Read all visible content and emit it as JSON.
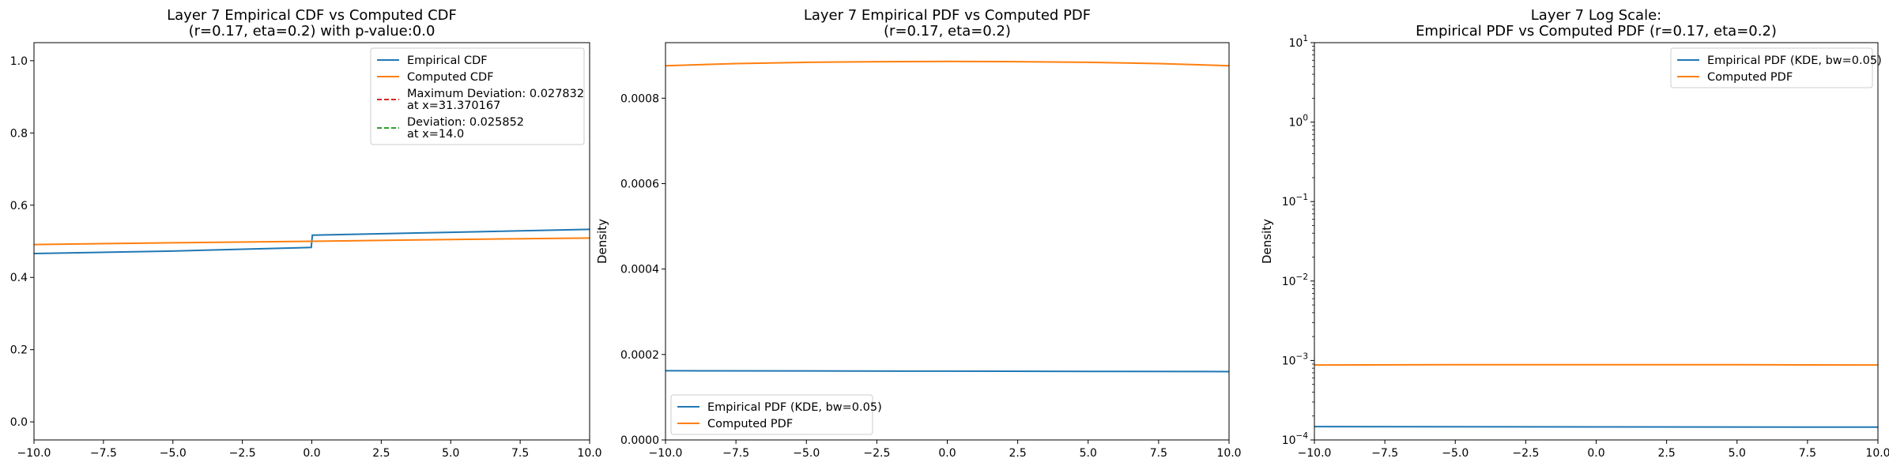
{
  "chart_data": [
    {
      "type": "line",
      "title": "Layer 7 Empirical CDF vs Computed CDF",
      "subtitle": "(r=0.17, eta=0.2) with p-value:0.0",
      "xlabel": "",
      "ylabel": "",
      "xlim": [
        -10,
        10
      ],
      "ylim": [
        -0.05,
        1.05
      ],
      "xticks": [
        -10.0,
        -7.5,
        -5.0,
        -2.5,
        0.0,
        2.5,
        5.0,
        7.5,
        10.0
      ],
      "xtick_labels": [
        "−10.0",
        "−7.5",
        "−5.0",
        "−2.5",
        "0.0",
        "2.5",
        "5.0",
        "7.5",
        "10.0"
      ],
      "yticks": [
        0.0,
        0.2,
        0.4,
        0.6,
        0.8,
        1.0
      ],
      "ytick_labels": [
        "0.0",
        "0.2",
        "0.4",
        "0.6",
        "0.8",
        "1.0"
      ],
      "grid": false,
      "legend_position": "top-right",
      "series": [
        {
          "name": "Empirical CDF",
          "color": "#1f77b4",
          "dash": "",
          "points": [
            [
              -10,
              0.466
            ],
            [
              -5,
              0.473
            ],
            [
              -0.02,
              0.483
            ],
            [
              0.02,
              0.517
            ],
            [
              5,
              0.525
            ],
            [
              10,
              0.533
            ]
          ]
        },
        {
          "name": "Computed CDF",
          "color": "#ff7f0e",
          "dash": "",
          "points": [
            [
              -10,
              0.491
            ],
            [
              -5,
              0.496
            ],
            [
              0,
              0.5
            ],
            [
              5,
              0.505
            ],
            [
              10,
              0.509
            ]
          ]
        },
        {
          "name": "Maximum Deviation: 0.027832",
          "name2": "at x=31.370167",
          "color": "#d62728",
          "dash": "6,3",
          "points": []
        },
        {
          "name": "Deviation: 0.025852",
          "name2": "at x=14.0",
          "color": "#2ca02c",
          "dash": "6,3",
          "points": []
        }
      ]
    },
    {
      "type": "line",
      "title": "Layer 7 Empirical PDF vs Computed PDF",
      "subtitle": "(r=0.17, eta=0.2)",
      "xlabel": "",
      "ylabel": "Density",
      "xlim": [
        -10,
        10
      ],
      "ylim": [
        0,
        0.00093
      ],
      "xticks": [
        -10.0,
        -7.5,
        -5.0,
        -2.5,
        0.0,
        2.5,
        5.0,
        7.5,
        10.0
      ],
      "xtick_labels": [
        "−10.0",
        "−7.5",
        "−5.0",
        "−2.5",
        "0.0",
        "2.5",
        "5.0",
        "7.5",
        "10.0"
      ],
      "yticks": [
        0.0,
        0.0002,
        0.0004,
        0.0006,
        0.0008
      ],
      "ytick_labels": [
        "0.0000",
        "0.0002",
        "0.0004",
        "0.0006",
        "0.0008"
      ],
      "grid": false,
      "legend_position": "bottom-left",
      "series": [
        {
          "name": "Empirical PDF (KDE, bw=0.05)",
          "color": "#1f77b4",
          "dash": "",
          "points": [
            [
              -10,
              0.000162
            ],
            [
              -5,
              0.0001615
            ],
            [
              0,
              0.000161
            ],
            [
              5,
              0.0001605
            ],
            [
              10,
              0.00016
            ]
          ]
        },
        {
          "name": "Computed PDF",
          "color": "#ff7f0e",
          "dash": "",
          "points": [
            [
              -10,
              0.000876
            ],
            [
              -7.5,
              0.000881
            ],
            [
              -5,
              0.000884
            ],
            [
              -2.5,
              0.0008855
            ],
            [
              0,
              0.000886
            ],
            [
              2.5,
              0.0008855
            ],
            [
              5,
              0.000884
            ],
            [
              7.5,
              0.000881
            ],
            [
              10,
              0.000876
            ]
          ]
        }
      ]
    },
    {
      "type": "line",
      "title": "Layer 7 Log Scale:",
      "subtitle": "Empirical PDF vs Computed PDF (r=0.17, eta=0.2)",
      "xlabel": "",
      "ylabel": "Density",
      "yscale": "log",
      "xlim": [
        -10,
        10
      ],
      "ylim": [
        0.0001,
        10
      ],
      "xticks": [
        -10.0,
        -7.5,
        -5.0,
        -2.5,
        0.0,
        2.5,
        5.0,
        7.5,
        10.0
      ],
      "xtick_labels": [
        "−10.0",
        "−7.5",
        "−5.0",
        "−2.5",
        "0.0",
        "2.5",
        "5.0",
        "7.5",
        "10.0"
      ],
      "yticks": [
        0.0001,
        0.001,
        0.01,
        0.1,
        1,
        10
      ],
      "ytick_labels": [
        {
          "base": "10",
          "exp": "−4"
        },
        {
          "base": "10",
          "exp": "−3"
        },
        {
          "base": "10",
          "exp": "−2"
        },
        {
          "base": "10",
          "exp": "−1"
        },
        {
          "base": "10",
          "exp": "0"
        },
        {
          "base": "10",
          "exp": "1"
        }
      ],
      "grid": false,
      "legend_position": "top-right",
      "series": [
        {
          "name": "Empirical PDF (KDE, bw=0.05)",
          "color": "#1f77b4",
          "dash": "",
          "points": [
            [
              -10,
              0.000147
            ],
            [
              0,
              0.000146
            ],
            [
              10,
              0.000145
            ]
          ]
        },
        {
          "name": "Computed PDF",
          "color": "#ff7f0e",
          "dash": "",
          "points": [
            [
              -10,
              0.000876
            ],
            [
              -5,
              0.000884
            ],
            [
              0,
              0.000886
            ],
            [
              5,
              0.000884
            ],
            [
              10,
              0.000876
            ]
          ]
        }
      ]
    }
  ]
}
